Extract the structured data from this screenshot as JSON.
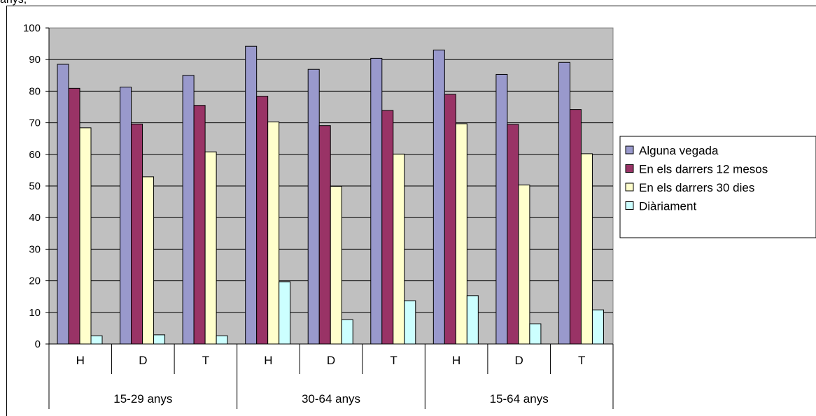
{
  "top_fragment": "anys,",
  "chart_data": {
    "type": "bar",
    "title": "",
    "xlabel": "",
    "ylabel": "",
    "ylim": [
      0,
      100
    ],
    "yticks": [
      0,
      10,
      20,
      30,
      40,
      50,
      60,
      70,
      80,
      90,
      100
    ],
    "grid": true,
    "legend_position": "right",
    "groups": [
      {
        "label": "15-29 anys",
        "categories": [
          "H",
          "D",
          "T"
        ]
      },
      {
        "label": "30-64 anys",
        "categories": [
          "H",
          "D",
          "T"
        ]
      },
      {
        "label": "15-64 anys",
        "categories": [
          "H",
          "D",
          "T"
        ]
      }
    ],
    "categories": [
      "H",
      "D",
      "T",
      "H",
      "D",
      "T",
      "H",
      "D",
      "T"
    ],
    "series": [
      {
        "name": "Alguna vegada",
        "color": "#9999cc",
        "values": [
          88.5,
          81.3,
          85.0,
          94.2,
          86.9,
          90.4,
          93.0,
          85.3,
          89.1
        ]
      },
      {
        "name": "En els darrers 12 mesos",
        "color": "#993366",
        "values": [
          80.9,
          69.6,
          75.5,
          78.4,
          69.1,
          73.9,
          79.0,
          69.5,
          74.2
        ]
      },
      {
        "name": "En els darrers 30 dies",
        "color": "#ffffcc",
        "values": [
          68.4,
          52.9,
          60.8,
          70.3,
          49.9,
          60.1,
          69.7,
          50.3,
          60.2
        ]
      },
      {
        "name": "Diàriament",
        "color": "#ccffff",
        "values": [
          2.6,
          2.9,
          2.6,
          19.7,
          7.7,
          13.7,
          15.3,
          6.4,
          10.8
        ]
      }
    ],
    "plot_background": "#c0c0c0"
  }
}
